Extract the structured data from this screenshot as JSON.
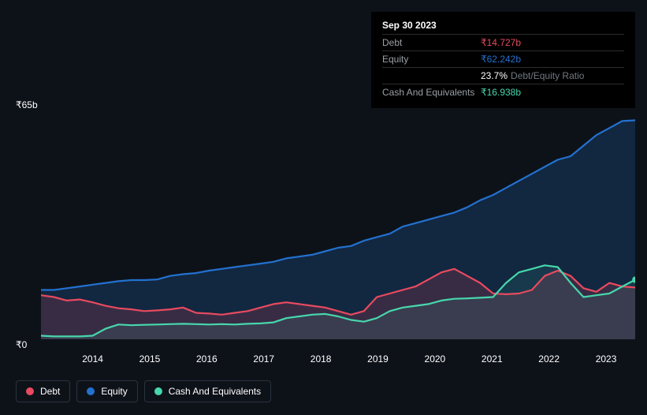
{
  "chart": {
    "type": "area",
    "background_color": "#0d1219",
    "ylim": [
      0,
      65
    ],
    "y_unit": "b",
    "y_currency": "₹",
    "y_top_label": "₹65b",
    "y_bottom_label": "₹0",
    "x_ticks": [
      "2014",
      "2015",
      "2016",
      "2017",
      "2018",
      "2019",
      "2020",
      "2021",
      "2022",
      "2023"
    ],
    "x_tick_positions_pct": [
      8.7,
      18.3,
      27.9,
      37.5,
      47.1,
      56.7,
      66.3,
      75.9,
      85.5,
      95.1
    ],
    "series": {
      "equity": {
        "label": "Equity",
        "color": "#2371cf",
        "fill_opacity": 0.22,
        "values": [
          14,
          14,
          14.5,
          15,
          15.5,
          16,
          16.5,
          16.8,
          16.8,
          17,
          18,
          18.5,
          18.8,
          19.5,
          20,
          20.5,
          21,
          21.5,
          22,
          23,
          23.5,
          24,
          25,
          26,
          26.5,
          28,
          29,
          30,
          32,
          33,
          34,
          35,
          36,
          37.5,
          39.5,
          41,
          43,
          45,
          47,
          49,
          51,
          52,
          55,
          58,
          60,
          62,
          62.2
        ]
      },
      "debt": {
        "label": "Debt",
        "color": "#e84a5f",
        "fill_opacity": 0.18,
        "values": [
          12.5,
          12,
          11,
          11.3,
          10.5,
          9.5,
          8.8,
          8.5,
          8,
          8.2,
          8.5,
          9,
          7.5,
          7.3,
          7.0,
          7.5,
          8,
          9,
          10,
          10.5,
          10,
          9.5,
          9,
          8,
          7,
          8,
          12,
          13,
          14,
          15,
          17,
          19,
          20,
          18,
          16,
          13,
          12.8,
          13,
          14,
          18,
          19.5,
          18,
          14.5,
          13.5,
          16,
          15,
          14.7
        ]
      },
      "cash": {
        "label": "Cash And Equivalents",
        "color": "#47d7ac",
        "fill_opacity": 0.1,
        "values": [
          1,
          0.8,
          0.8,
          0.8,
          1,
          3,
          4.2,
          4,
          4.1,
          4.2,
          4.3,
          4.4,
          4.3,
          4.2,
          4.3,
          4.2,
          4.4,
          4.5,
          4.8,
          6,
          6.5,
          7,
          7.2,
          6.5,
          5.5,
          5,
          6,
          8,
          9,
          9.5,
          10,
          11,
          11.5,
          11.6,
          11.8,
          12,
          16,
          19,
          20,
          21,
          20.5,
          16,
          12,
          12.5,
          13,
          15,
          16.9
        ]
      }
    },
    "line_width": 2.2
  },
  "tooltip": {
    "date": "Sep 30 2023",
    "rows": [
      {
        "label": "Debt",
        "value": "₹14.727b",
        "color": "#e84a5f"
      },
      {
        "label": "Equity",
        "value": "₹62.242b",
        "color": "#2371cf"
      },
      {
        "label": "",
        "value": "23.7%",
        "color": "#ffffff",
        "suffix": "Debt/Equity Ratio"
      },
      {
        "label": "Cash And Equivalents",
        "value": "₹16.938b",
        "color": "#47d7ac"
      }
    ]
  },
  "legend": [
    {
      "label": "Debt",
      "color": "#e84a5f"
    },
    {
      "label": "Equity",
      "color": "#2371cf"
    },
    {
      "label": "Cash And Equivalents",
      "color": "#47d7ac"
    }
  ]
}
